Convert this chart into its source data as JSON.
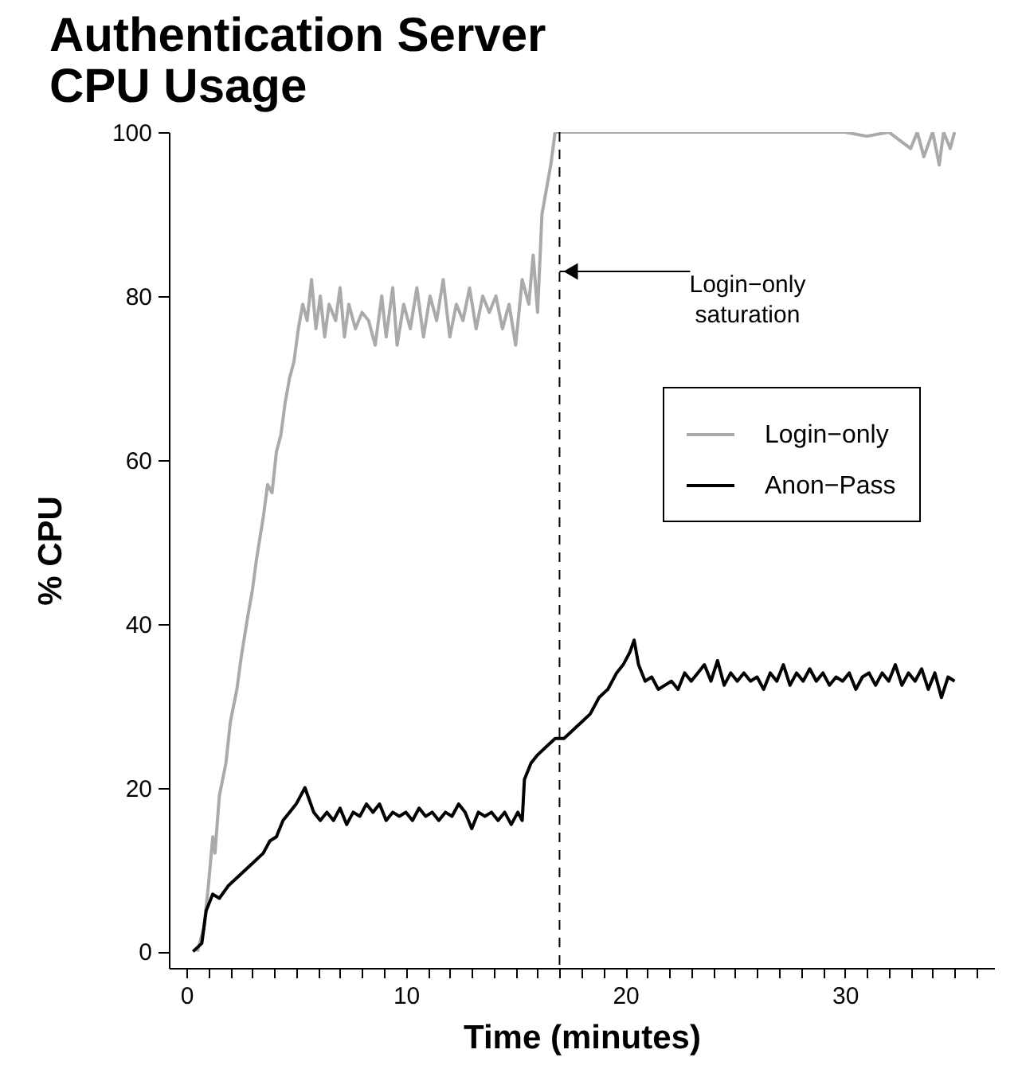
{
  "chart_data": {
    "type": "line",
    "title": "Authentication Server\nCPU Usage",
    "xlabel": "Time (minutes)",
    "ylabel": "% CPU",
    "xlim": [
      -0.8,
      36.8
    ],
    "ylim": [
      -2,
      100
    ],
    "xticks": [
      0,
      {
        "value": 1,
        "label": null
      },
      {
        "value": 2,
        "label": null
      },
      {
        "value": 3,
        "label": null
      },
      {
        "value": 4,
        "label": null
      },
      {
        "value": 5,
        "label": null
      },
      {
        "value": 6,
        "label": null
      },
      {
        "value": 7,
        "label": null
      },
      {
        "value": 8,
        "label": null
      },
      {
        "value": 9,
        "label": null
      },
      10,
      {
        "value": 11,
        "label": null
      },
      {
        "value": 12,
        "label": null
      },
      {
        "value": 13,
        "label": null
      },
      {
        "value": 14,
        "label": null
      },
      {
        "value": 15,
        "label": null
      },
      {
        "value": 16,
        "label": null
      },
      {
        "value": 17,
        "label": null
      },
      {
        "value": 18,
        "label": null
      },
      {
        "value": 19,
        "label": null
      },
      20,
      {
        "value": 21,
        "label": null
      },
      {
        "value": 22,
        "label": null
      },
      {
        "value": 23,
        "label": null
      },
      {
        "value": 24,
        "label": null
      },
      {
        "value": 25,
        "label": null
      },
      {
        "value": 26,
        "label": null
      },
      {
        "value": 27,
        "label": null
      },
      {
        "value": 28,
        "label": null
      },
      {
        "value": 29,
        "label": null
      },
      30,
      {
        "value": 31,
        "label": null
      },
      {
        "value": 32,
        "label": null
      },
      {
        "value": 33,
        "label": null
      },
      {
        "value": 34,
        "label": null
      },
      {
        "value": 35,
        "label": null
      },
      {
        "value": 36,
        "label": null
      }
    ],
    "yticks": [
      0,
      20,
      40,
      60,
      80,
      100
    ],
    "grid": false,
    "legend": "right",
    "marker": "none",
    "line_style": "solid",
    "ref_lines": [
      {
        "axis": "x",
        "value": 17,
        "line_style": "dashed",
        "color": "#000000"
      }
    ],
    "annotations": [
      {
        "text": "Login−only\nsaturation",
        "x": 17,
        "y": 83
      }
    ],
    "series": [
      {
        "name": "Login−only",
        "color": "#aaaaaa",
        "x": [
          0.5,
          0.8,
          1.0,
          1.2,
          1.3,
          1.5,
          1.8,
          2.0,
          2.3,
          2.5,
          2.8,
          3.0,
          3.2,
          3.5,
          3.7,
          3.9,
          4.1,
          4.3,
          4.5,
          4.7,
          4.9,
          5.1,
          5.3,
          5.5,
          5.7,
          5.9,
          6.1,
          6.3,
          6.5,
          6.8,
          7.0,
          7.2,
          7.4,
          7.7,
          8.0,
          8.3,
          8.6,
          8.9,
          9.1,
          9.4,
          9.6,
          9.9,
          10.2,
          10.5,
          10.8,
          11.1,
          11.4,
          11.7,
          12.0,
          12.3,
          12.6,
          12.9,
          13.2,
          13.5,
          13.8,
          14.1,
          14.4,
          14.7,
          15.0,
          15.3,
          15.6,
          15.8,
          16.0,
          16.2,
          16.4,
          16.6,
          16.8,
          17,
          18,
          20,
          22,
          24,
          26,
          28,
          30,
          31,
          32,
          33,
          33.3,
          33.6,
          34,
          34.3,
          34.5,
          34.8,
          35
        ],
        "values": [
          0,
          3,
          8,
          14,
          12,
          19,
          23,
          28,
          32,
          36,
          41,
          44,
          48,
          53,
          57,
          56,
          61,
          63,
          67,
          70,
          72,
          76,
          79,
          77,
          82,
          76,
          80,
          75,
          79,
          77,
          81,
          75,
          79,
          76,
          78,
          77,
          74,
          80,
          75,
          81,
          74,
          79,
          76,
          81,
          75,
          80,
          77,
          82,
          75,
          79,
          77,
          81,
          76,
          80,
          78,
          80,
          76,
          79,
          74,
          82,
          79,
          85,
          78,
          90,
          93,
          96,
          100,
          100,
          100,
          100,
          100,
          100,
          100,
          100,
          100,
          99.5,
          100,
          98,
          100,
          97,
          100,
          96,
          100,
          98,
          100
        ]
      },
      {
        "name": "Anon−Pass",
        "color": "#000000",
        "x": [
          0.3,
          0.7,
          0.9,
          1.2,
          1.5,
          1.9,
          2.3,
          2.7,
          3.1,
          3.5,
          3.8,
          4.1,
          4.4,
          4.7,
          5.0,
          5.2,
          5.4,
          5.6,
          5.8,
          6.1,
          6.4,
          6.7,
          7.0,
          7.3,
          7.6,
          7.9,
          8.2,
          8.5,
          8.8,
          9.1,
          9.4,
          9.7,
          10.0,
          10.3,
          10.6,
          10.9,
          11.2,
          11.5,
          11.8,
          12.1,
          12.4,
          12.7,
          13.0,
          13.3,
          13.6,
          13.9,
          14.2,
          14.5,
          14.8,
          15.1,
          15.3,
          15.4,
          15.7,
          16.0,
          16.4,
          16.8,
          17.2,
          17.6,
          18.0,
          18.4,
          18.8,
          19.2,
          19.6,
          19.9,
          20.2,
          20.4,
          20.6,
          20.9,
          21.2,
          21.5,
          21.8,
          22.1,
          22.4,
          22.7,
          23.0,
          23.3,
          23.6,
          23.9,
          24.2,
          24.5,
          24.8,
          25.1,
          25.4,
          25.7,
          26.0,
          26.3,
          26.6,
          26.9,
          27.2,
          27.5,
          27.8,
          28.1,
          28.4,
          28.7,
          29.0,
          29.3,
          29.6,
          29.9,
          30.2,
          30.5,
          30.8,
          31.1,
          31.4,
          31.7,
          32.0,
          32.3,
          32.6,
          32.9,
          33.2,
          33.5,
          33.8,
          34.1,
          34.4,
          34.7,
          35.0
        ],
        "values": [
          0,
          1,
          5,
          7,
          6.5,
          8,
          9,
          10,
          11,
          12,
          13.5,
          14,
          16,
          17,
          18,
          19,
          20,
          18.5,
          17,
          16,
          17,
          16,
          17.5,
          15.5,
          17,
          16.5,
          18,
          17,
          18,
          16,
          17,
          16.5,
          17,
          16,
          17.5,
          16.5,
          17,
          16,
          17,
          16.5,
          18,
          17,
          15,
          17,
          16.5,
          17,
          16,
          17,
          15.5,
          17,
          16,
          21,
          23,
          24,
          25,
          26,
          26,
          27,
          28,
          29,
          31,
          32,
          34,
          35,
          36.5,
          38,
          35,
          33,
          33.5,
          32,
          32.5,
          33,
          32,
          34,
          33,
          34,
          35,
          33,
          35.5,
          32.5,
          34,
          33,
          34,
          33,
          33.5,
          32,
          34,
          33,
          35,
          32.5,
          34,
          33,
          34.5,
          33,
          34,
          32.5,
          33.5,
          33,
          34,
          32,
          33.5,
          34,
          32.5,
          34,
          33,
          35,
          32.5,
          34,
          33,
          34.5,
          32,
          34,
          31,
          33.5,
          33
        ]
      }
    ]
  }
}
